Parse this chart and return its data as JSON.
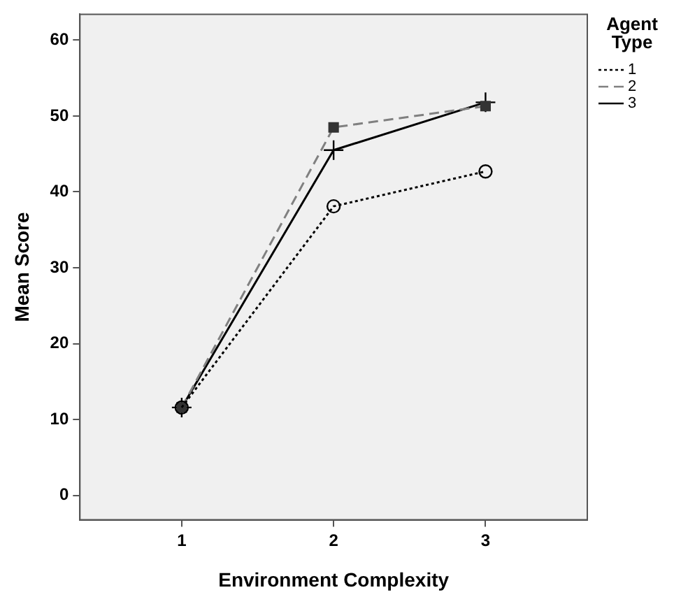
{
  "chart_data": {
    "type": "line",
    "xlabel": "Environment Complexity",
    "ylabel": "Mean Score",
    "legend_title": "Agent Type",
    "legend": "top right",
    "grid": false,
    "x": [
      1,
      2,
      3
    ],
    "xlim": [
      0.33,
      3.67
    ],
    "xticks": [
      1,
      2,
      3
    ],
    "ylim": [
      -3.2,
      63.4
    ],
    "yticks": [
      0,
      10,
      20,
      30,
      40,
      50,
      60
    ],
    "series": [
      {
        "name": "1",
        "color": "#000000",
        "marker": "circle",
        "line_style": "dotted",
        "values": [
          11.6,
          38.1,
          42.7
        ]
      },
      {
        "name": "2",
        "color": "#808080",
        "marker": "square",
        "line_style": "dashed",
        "values": [
          11.6,
          48.5,
          51.3
        ]
      },
      {
        "name": "3",
        "color": "#000000",
        "marker": "cross",
        "line_style": "solid",
        "values": [
          11.6,
          45.5,
          51.8
        ]
      }
    ]
  }
}
